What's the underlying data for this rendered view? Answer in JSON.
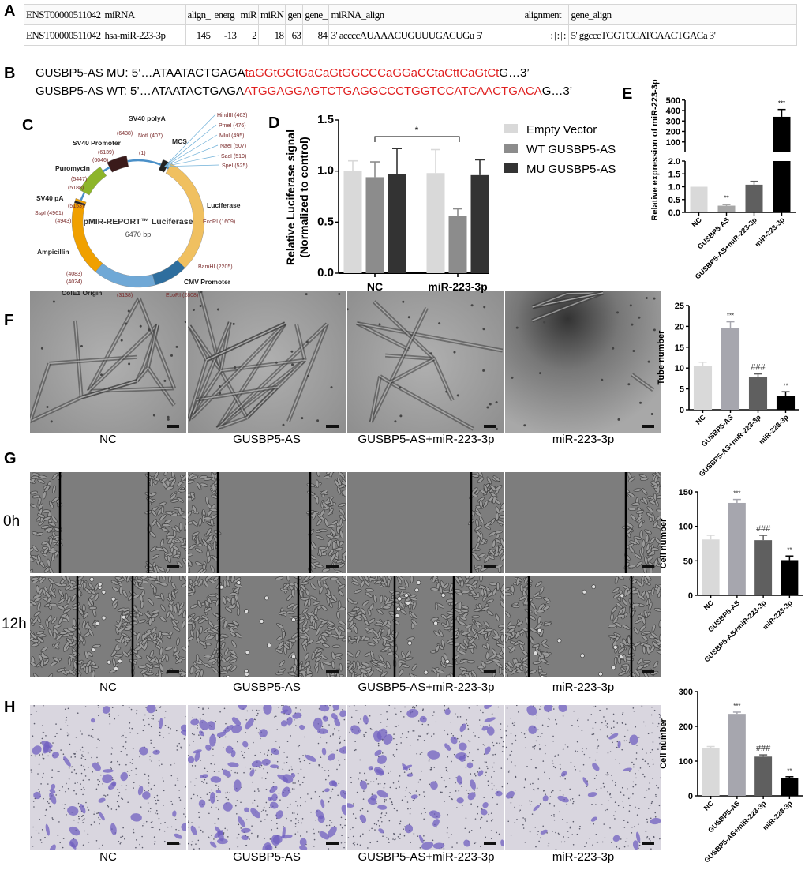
{
  "panel_labels": {
    "A": "A",
    "B": "B",
    "C": "C",
    "D": "D",
    "E": "E",
    "F": "F",
    "G": "G",
    "H": "H"
  },
  "table_a": {
    "headers": [
      "ENST00000511042",
      "miRNA",
      "align_",
      "energ",
      "miR",
      "miRN",
      "gen",
      "gene_",
      "miRNA_align",
      "alignment",
      "gene_align"
    ],
    "row": [
      "ENST00000511042",
      "hsa-miR-223-3p",
      "145",
      "-13",
      "2",
      "18",
      "63",
      "84",
      "3' accccAUAAACUGUUUGACUGu 5'",
      ":|:|:",
      "5' ggcccTGGTCCATCAACTGACa 3'"
    ]
  },
  "sequences": {
    "mu": {
      "prefix": "GUSBP5-AS MU: 5’…ATAATACTGAGA",
      "mutated": "taGGtGGtGaCaGtGGCCCaGGaCCtaCttCaGtCt",
      "suffix": "G…3’"
    },
    "wt": {
      "prefix": "GUSBP5-AS WT: 5’…ATAATACTGAGA",
      "site": "ATGGAGGAGTCTGAGGCCCTGGTCCATCAACTGACA",
      "suffix": "G…3’"
    },
    "highlight_color": "#e02020"
  },
  "plasmid": {
    "name": "pMIR-REPORT™ Luciferase",
    "size": "6470 bp",
    "features": [
      "SV40 polyA",
      "MCS",
      "SV40 Promoter",
      "Puromycin",
      "SV40 pA",
      "Luciferase",
      "Ampicillin",
      "CMV Promoter",
      "ColE1 Origin"
    ],
    "sites": [
      "HindIII (463)",
      "PmeI (476)",
      "MluI (495)",
      "NaeI (507)",
      "SacI (519)",
      "SpeI (525)",
      "NotI (407)",
      "(1)",
      "(6438)",
      "(6139)",
      "(6046)",
      "(5447)",
      "(5188)",
      "(5153)",
      "SspI (4961)",
      "(4943)",
      "EcoRI (1609)",
      "BamHI (2205)",
      "EcoRI (2808)",
      "(3138)",
      "(4083)",
      "(4024)"
    ],
    "colors": {
      "luciferase": "#f0c060",
      "ampicillin": "#f0a000",
      "puromycin": "#8db52a",
      "cmv": "#2e6e9e",
      "ori": "#6fa8d6",
      "sv40": "#3a1a1a",
      "backbone": "#4a90c8"
    }
  },
  "chart_data": [
    {
      "id": "D",
      "type": "bar",
      "categories": [
        "NC",
        "miR-223-3p"
      ],
      "series": [
        {
          "name": "Empty Vector",
          "values": [
            1.0,
            0.98
          ],
          "errors": [
            0.1,
            0.23
          ],
          "color": "#d9d9d9"
        },
        {
          "name": "WT GUSBP5-AS",
          "values": [
            0.94,
            0.56
          ],
          "errors": [
            0.15,
            0.07
          ],
          "color": "#8c8c8c"
        },
        {
          "name": "MU GUSBP5-AS",
          "values": [
            0.97,
            0.96
          ],
          "errors": [
            0.25,
            0.15
          ],
          "color": "#333333"
        }
      ],
      "ylabel": "Relative Luciferase signal (Normalized to control)",
      "ylabel_lines": [
        "Relative Luciferase signal",
        "(Normalized to control)"
      ],
      "ylim": [
        0,
        1.5
      ],
      "yticks": [
        "0.0",
        "0.5",
        "1.0",
        "1.5"
      ],
      "significance": {
        "between": [
          "NC / WT GUSBP5-AS",
          "miR-223-3p / WT GUSBP5-AS"
        ],
        "label": "*"
      },
      "legend": "right"
    },
    {
      "id": "E",
      "type": "bar",
      "categories": [
        "NC",
        "GUSBP5-AS",
        "GUSBP5-AS+miR-223-3p",
        "miR-223-3p"
      ],
      "values": [
        1.0,
        0.26,
        1.08,
        340
      ],
      "errors": [
        0,
        0.04,
        0.13,
        70
      ],
      "colors": [
        "#d9d9d9",
        "#a6a6a6",
        "#5f5f5f",
        "#000000"
      ],
      "annotations": [
        "",
        "**",
        "",
        "***"
      ],
      "ylabel": "Relative expression of miR-223-3p",
      "axis_break": true,
      "ylim_lower": [
        0,
        2.0
      ],
      "ylim_upper": [
        0,
        500
      ],
      "yticks_lower": [
        "0.0",
        "0.5",
        "1.0",
        "1.5",
        "2.0"
      ],
      "yticks_upper": [
        "100",
        "200",
        "300",
        "400",
        "500"
      ]
    },
    {
      "id": "F",
      "type": "bar",
      "categories": [
        "NC",
        "GUSBP5-AS",
        "GUSBP5-AS+miR-223-3p",
        "miR-223-3p"
      ],
      "values": [
        10.6,
        19.6,
        7.9,
        3.3
      ],
      "errors": [
        0.8,
        1.5,
        0.7,
        1.0
      ],
      "colors": [
        "#d9d9d9",
        "#a6a6ae",
        "#5f5f5f",
        "#000000"
      ],
      "annotations": [
        "",
        "***",
        "###",
        "**"
      ],
      "ylabel": "Tube number",
      "ylim": [
        0,
        25
      ],
      "yticks": [
        "0",
        "5",
        "10",
        "15",
        "20",
        "25"
      ]
    },
    {
      "id": "G",
      "type": "bar",
      "categories": [
        "NC",
        "GUSBP5-AS",
        "GUSBP5-AS+miR-223-3p",
        "miR-223-3p"
      ],
      "values": [
        81,
        134,
        80,
        51
      ],
      "errors": [
        6,
        5,
        7,
        6
      ],
      "colors": [
        "#d9d9d9",
        "#a6a6ae",
        "#5f5f5f",
        "#000000"
      ],
      "annotations": [
        "",
        "***",
        "###",
        "**"
      ],
      "ylabel": "Cell number",
      "ylim": [
        0,
        150
      ],
      "yticks": [
        "0",
        "50",
        "100",
        "150"
      ]
    },
    {
      "id": "H",
      "type": "bar",
      "categories": [
        "NC",
        "GUSBP5-AS",
        "GUSBP5-AS+miR-223-3p",
        "miR-223-3p"
      ],
      "values": [
        138,
        236,
        113,
        50
      ],
      "errors": [
        4,
        5,
        5,
        5
      ],
      "colors": [
        "#d9d9d9",
        "#a6a6ae",
        "#5f5f5f",
        "#000000"
      ],
      "annotations": [
        "",
        "***",
        "###",
        "**"
      ],
      "ylabel": "Cell number",
      "ylim": [
        0,
        300
      ],
      "yticks": [
        "0",
        "100",
        "200",
        "300"
      ]
    }
  ],
  "image_captions": [
    "NC",
    "GUSBP5-AS",
    "GUSBP5-AS+miR-223-3p",
    "miR-223-3p"
  ],
  "time_labels": {
    "t0": "0h",
    "t12": "12h"
  }
}
